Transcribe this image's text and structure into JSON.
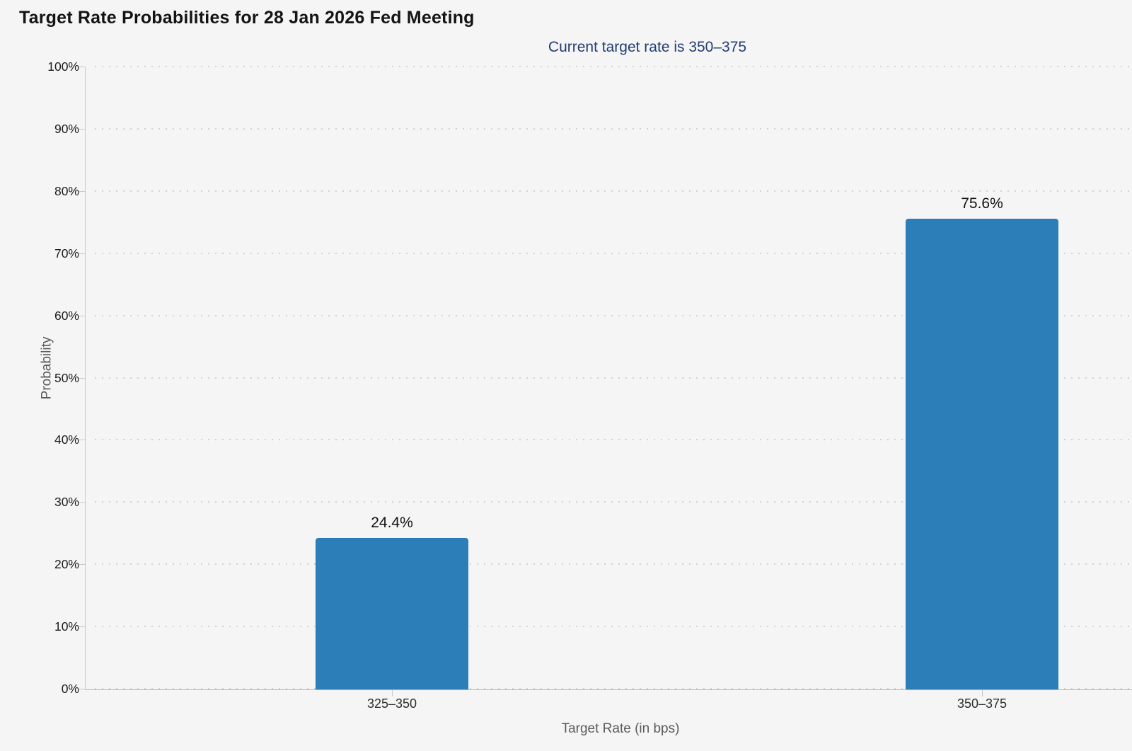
{
  "page": {
    "background_color": "#f5f5f6"
  },
  "chart_data": {
    "type": "bar",
    "title": "Target Rate Probabilities for 28 Jan 2026 Fed Meeting",
    "subtitle": "Current target rate is 350–375",
    "subtitle_color": "#233d72",
    "categories": [
      "325–350",
      "350–375"
    ],
    "values": [
      24.4,
      75.6
    ],
    "value_labels": [
      "24.4%",
      "75.6%"
    ],
    "series_name": "Probability",
    "xlabel": "Target Rate (in bps)",
    "ylabel": "Probability",
    "ylim": [
      0,
      100
    ],
    "ytick_step": 10,
    "ytick_labels": [
      "0%",
      "10%",
      "20%",
      "30%",
      "40%",
      "50%",
      "60%",
      "70%",
      "80%",
      "90%",
      "100%"
    ],
    "grid": "dotted horizontal gridlines at each 10%",
    "legend": "none",
    "bar_color": "#2c7eb8"
  }
}
